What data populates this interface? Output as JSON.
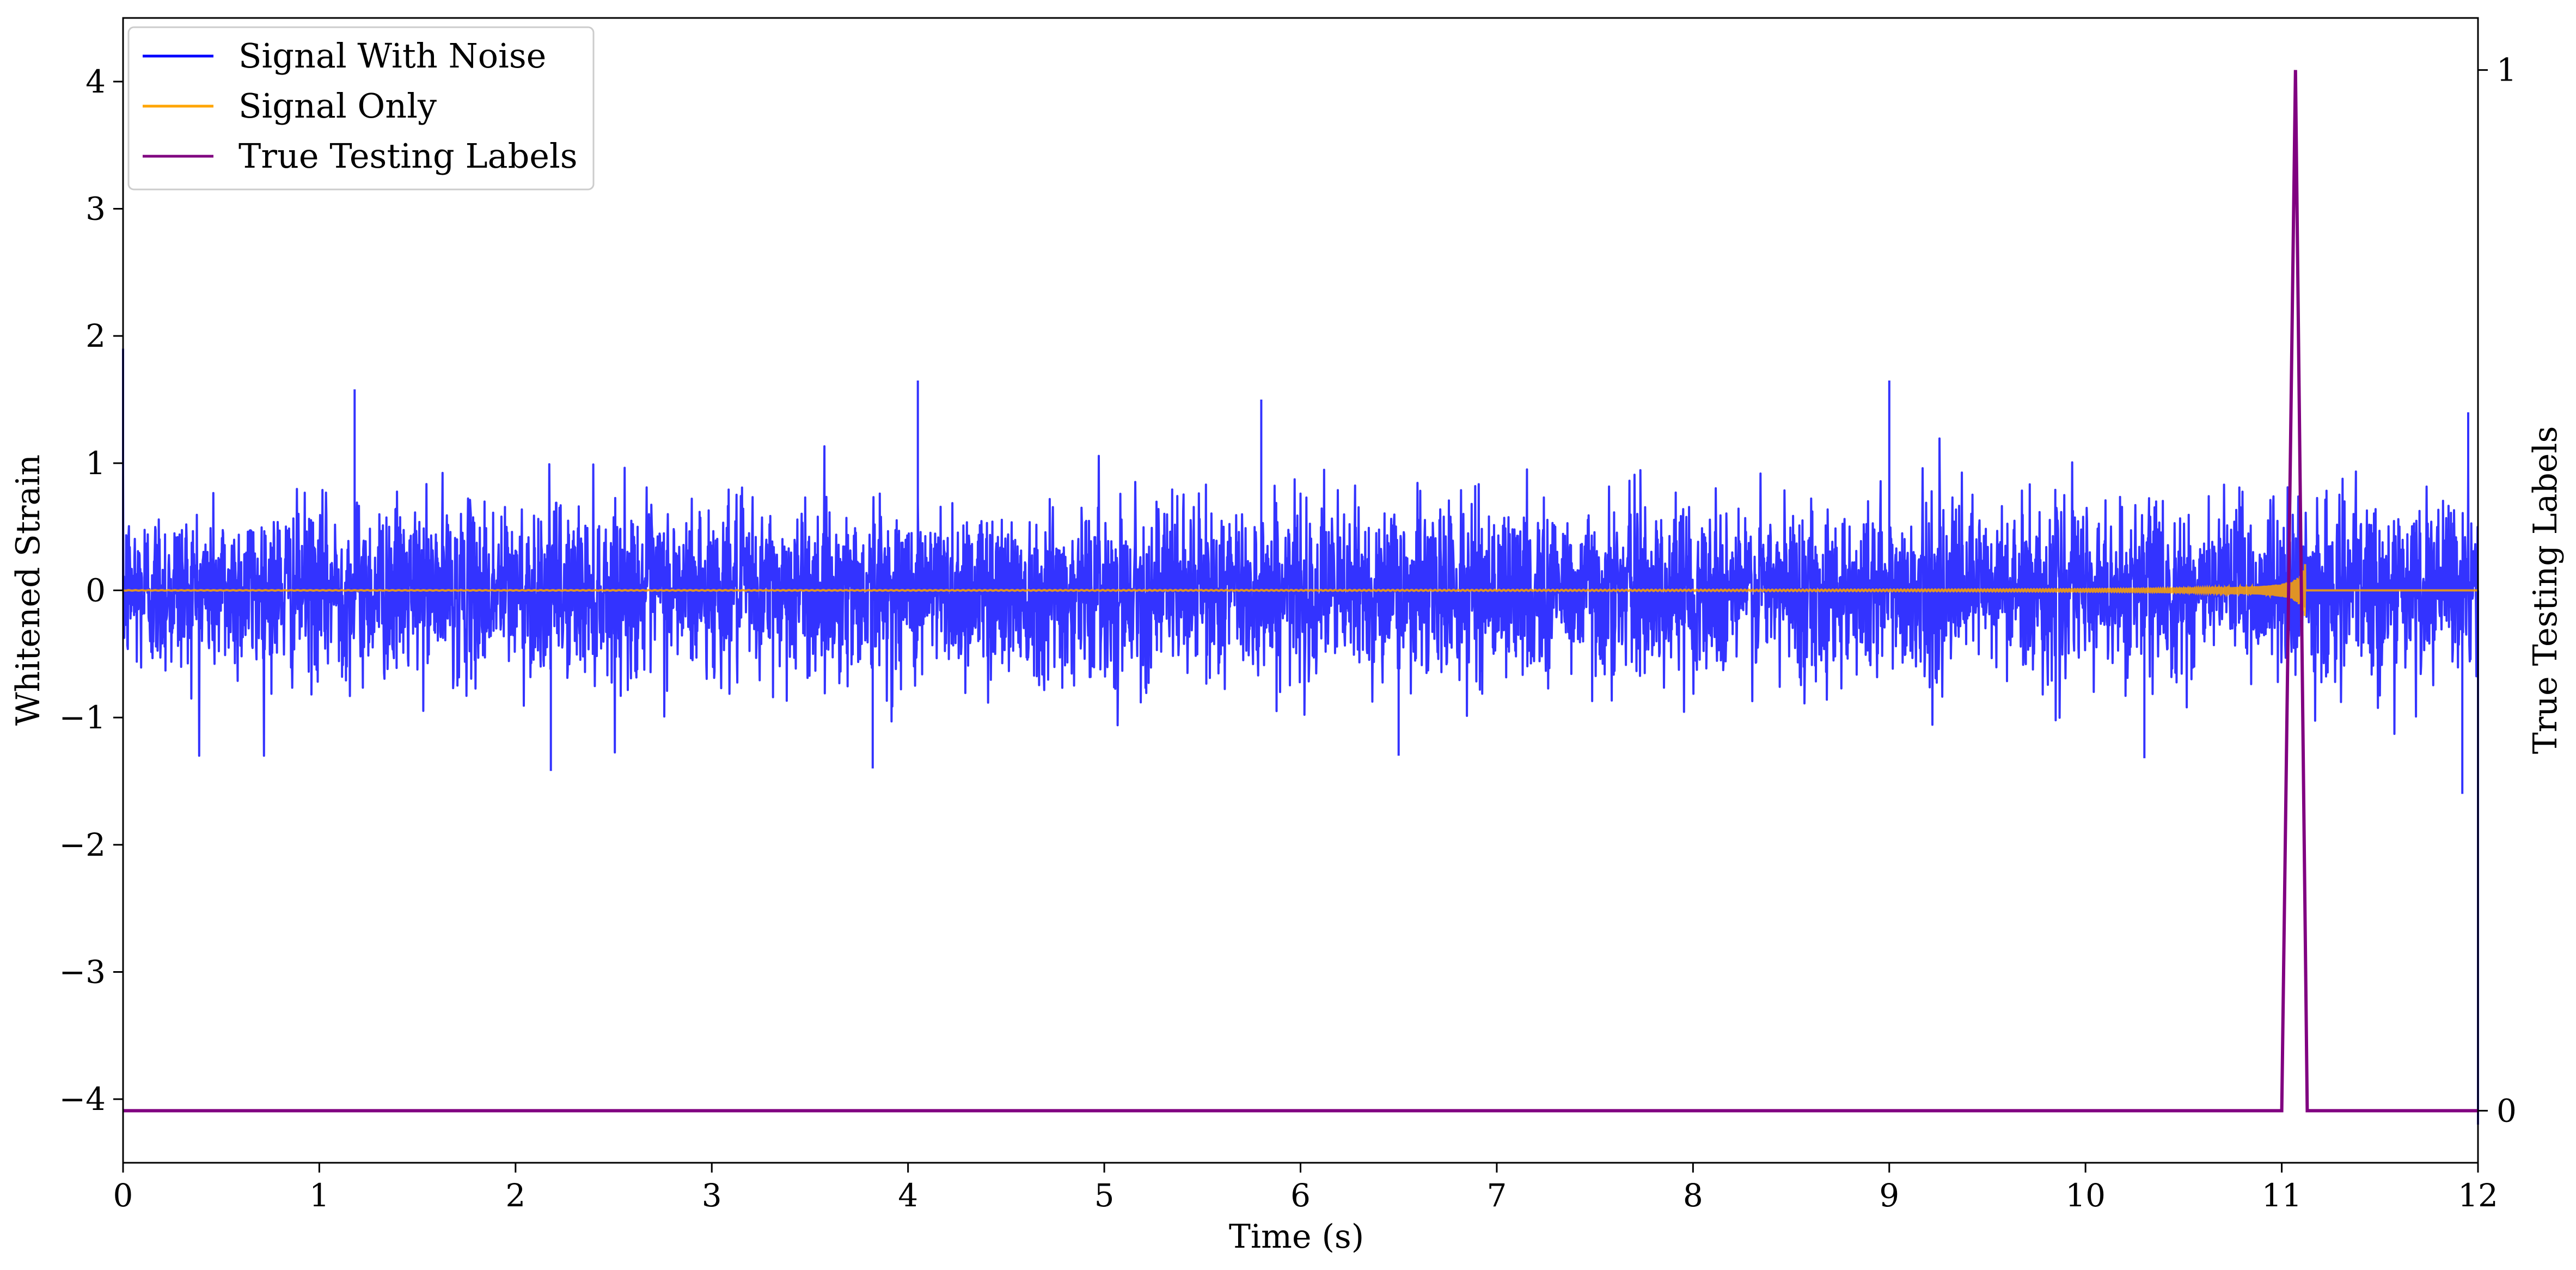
{
  "chart_data": {
    "type": "line",
    "title": "",
    "xlabel": "Time (s)",
    "ylabel": "Whitened Strain",
    "y2label": "True Testing Labels",
    "xlim": [
      0,
      12
    ],
    "ylim": [
      -4.5,
      4.5
    ],
    "y2lim": [
      -0.05,
      1.05
    ],
    "xticks": [
      "0",
      "1",
      "2",
      "3",
      "4",
      "5",
      "6",
      "7",
      "8",
      "9",
      "10",
      "11",
      "12"
    ],
    "yticks": [
      "−4",
      "−3",
      "−2",
      "−1",
      "0",
      "1",
      "2",
      "3",
      "4"
    ],
    "y2ticks": [
      "0",
      "1"
    ],
    "grid": false,
    "legend_position": "top-left",
    "series": [
      {
        "name": "Signal With Noise",
        "color": "#0000ff",
        "axis": "left",
        "description_points": {
          "noise_std": 0.33,
          "peaks": [
            {
              "x": 0.0,
              "y": 1.9
            },
            {
              "x": 1.18,
              "y": 1.58
            },
            {
              "x": 4.05,
              "y": 1.65
            },
            {
              "x": 5.8,
              "y": 1.5
            },
            {
              "x": 9.0,
              "y": 1.65
            },
            {
              "x": 11.95,
              "y": 1.4
            },
            {
              "x": 2.18,
              "y": -1.42
            },
            {
              "x": 3.82,
              "y": -1.4
            },
            {
              "x": 6.5,
              "y": -1.3
            },
            {
              "x": 10.3,
              "y": -1.32
            },
            {
              "x": 11.92,
              "y": -1.6
            },
            {
              "x": 12.0,
              "y": -4.2
            }
          ]
        }
      },
      {
        "name": "Signal Only",
        "color": "#ffa500",
        "axis": "left",
        "chirp": {
          "start": 0.0,
          "end": 11.12,
          "peak_amplitude": 1.0
        }
      },
      {
        "name": "True Testing Labels",
        "color": "#800080",
        "axis": "right",
        "x": [
          0,
          11.0,
          11.07,
          11.13,
          12.0
        ],
        "y": [
          0,
          0,
          1,
          0,
          0
        ]
      }
    ]
  }
}
